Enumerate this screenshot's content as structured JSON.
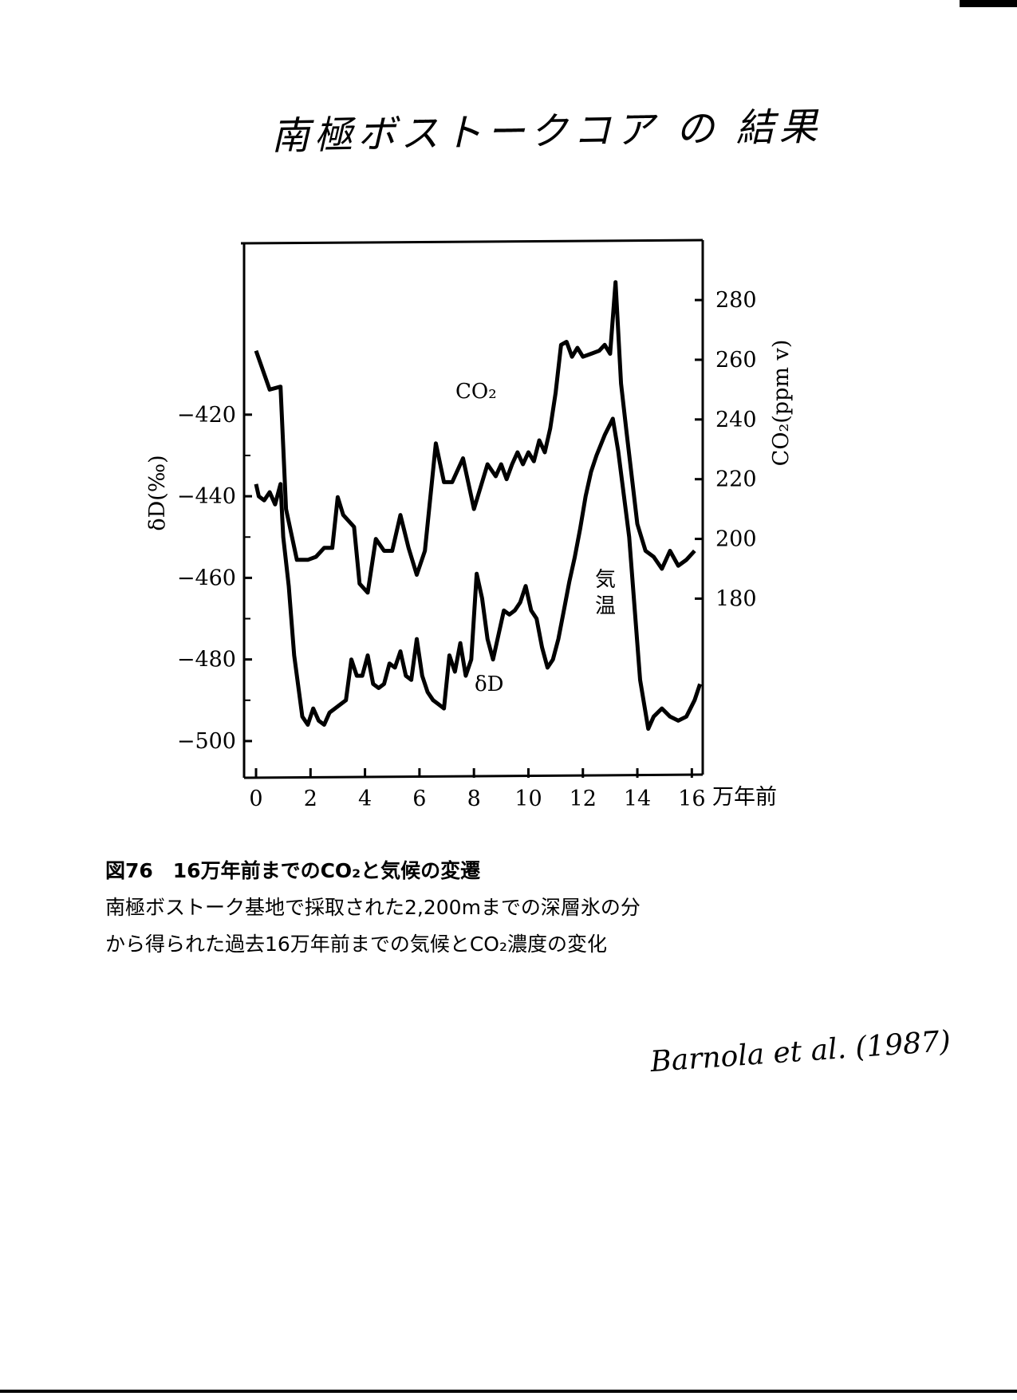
{
  "handwritten_title": "南極ボストークコア の 結果",
  "attribution": "Barnola et al. (1987)",
  "caption": {
    "title": "図76　16万年前までのCO₂と気候の変遷",
    "line1": "南極ボストーク基地で採取された2,200mまでの深層氷の分",
    "line2": "から得られた過去16万年前までの気候とCO₂濃度の変化"
  },
  "chart_data": {
    "type": "line",
    "x_unit": "万年前",
    "x_ticks": [
      0,
      2,
      4,
      6,
      8,
      10,
      12,
      14,
      16
    ],
    "xlim": [
      0,
      16.4
    ],
    "left_axis": {
      "label": "δD(‰)",
      "ticks": [
        -420,
        -440,
        -460,
        -480,
        -500
      ],
      "ylim": [
        -509,
        -378
      ]
    },
    "right_axis": {
      "label": "CO₂(ppm v)",
      "ticks": [
        180,
        200,
        220,
        240,
        260,
        280
      ],
      "ylim": [
        120,
        299
      ]
    },
    "series": [
      {
        "name": "CO₂",
        "axis": "right",
        "x": [
          0,
          0.5,
          0.9,
          1.1,
          1.5,
          1.9,
          2.2,
          2.5,
          2.8,
          3.0,
          3.2,
          3.6,
          3.8,
          4.1,
          4.4,
          4.7,
          5.0,
          5.3,
          5.6,
          5.9,
          6.2,
          6.6,
          6.9,
          7.2,
          7.6,
          8.0,
          8.2,
          8.5,
          8.8,
          9.0,
          9.2,
          9.4,
          9.6,
          9.8,
          10.0,
          10.2,
          10.4,
          10.6,
          10.8,
          11.0,
          11.2,
          11.4,
          11.6,
          11.8,
          12.0,
          12.3,
          12.6,
          12.8,
          13.0,
          13.2,
          13.4,
          13.6,
          14.0,
          14.3,
          14.6,
          14.9,
          15.2,
          15.5,
          15.8,
          16.1
        ],
        "y": [
          263,
          250,
          251,
          210,
          193,
          193,
          194,
          197,
          197,
          214,
          208,
          204,
          185,
          182,
          200,
          196,
          196,
          208,
          197,
          188,
          196,
          232,
          219,
          219,
          227,
          210,
          216,
          225,
          221,
          225,
          220,
          225,
          229,
          225,
          229,
          226,
          233,
          229,
          237,
          249,
          265,
          266,
          261,
          264,
          261,
          262,
          263,
          265,
          262,
          286,
          252,
          236,
          205,
          196,
          194,
          190,
          196,
          191,
          193,
          196
        ]
      },
      {
        "name": "δD",
        "axis": "left",
        "x": [
          0,
          0.1,
          0.3,
          0.5,
          0.7,
          0.9,
          1.0,
          1.2,
          1.4,
          1.7,
          1.9,
          2.1,
          2.3,
          2.5,
          2.7,
          2.9,
          3.1,
          3.3,
          3.5,
          3.7,
          3.9,
          4.1,
          4.3,
          4.5,
          4.7,
          4.9,
          5.1,
          5.3,
          5.5,
          5.7,
          5.9,
          6.1,
          6.3,
          6.5,
          6.7,
          6.9,
          7.1,
          7.3,
          7.5,
          7.7,
          7.9,
          8.1,
          8.3,
          8.5,
          8.7,
          8.9,
          9.1,
          9.3,
          9.5,
          9.7,
          9.9,
          10.1,
          10.3,
          10.5,
          10.7,
          10.9,
          11.1,
          11.3,
          11.5,
          11.7,
          11.9,
          12.1,
          12.3,
          12.5,
          12.8,
          13.1,
          13.3,
          13.7,
          14.1,
          14.4,
          14.6,
          14.9,
          15.2,
          15.5,
          15.8,
          16.1,
          16.3
        ],
        "y": [
          -437,
          -440,
          -441,
          -439,
          -442,
          -437,
          -450,
          -462,
          -479,
          -494,
          -496,
          -492,
          -495,
          -496,
          -493,
          -492,
          -491,
          -490,
          -480,
          -484,
          -484,
          -479,
          -486,
          -487,
          -486,
          -481,
          -482,
          -478,
          -484,
          -485,
          -475,
          -484,
          -488,
          -490,
          -491,
          -492,
          -479,
          -483,
          -476,
          -484,
          -480,
          -459,
          -465,
          -475,
          -480,
          -474,
          -468,
          -469,
          -468,
          -466,
          -462,
          -468,
          -470,
          -477,
          -482,
          -480,
          -475,
          -468,
          -461,
          -455,
          -448,
          -440,
          -434,
          -430,
          -425,
          -421,
          -429,
          -450,
          -485,
          -497,
          -494,
          -492,
          -494,
          -495,
          -494,
          -490,
          -486
        ]
      }
    ],
    "annotations": [
      "CO₂",
      "気温",
      "δD"
    ]
  }
}
